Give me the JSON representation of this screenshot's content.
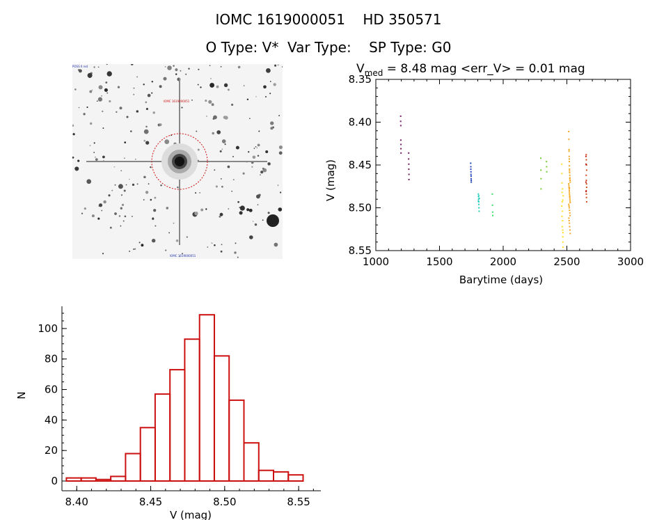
{
  "header": {
    "line1": "IOMC 1619000051    HD 350571",
    "line2": "O Type: V*  Var Type:    SP Type: G0"
  },
  "image_panel": {
    "label_top_left": "POSS II red",
    "label_target": "IOMC 1619000051",
    "label_bottom": "IOMC 1619000051"
  },
  "chart_data": [
    {
      "type": "scatter",
      "title_prefix": "V",
      "title_sub": "med",
      "title_rest": " = 8.48 mag <err_V> = 0.01 mag",
      "xlabel": "Barytime (days)",
      "ylabel": "V (mag)",
      "xlim": [
        1000,
        3000
      ],
      "ylim": [
        8.55,
        8.35
      ],
      "y_inverted": true,
      "xticks": [
        "1000",
        "1500",
        "2000",
        "2500",
        "3000"
      ],
      "yticks": [
        "8.35",
        "8.40",
        "8.45",
        "8.50",
        "8.55"
      ],
      "series": [
        {
          "color": "#7a1a6a",
          "x": [
            1195,
            1195,
            1196,
            1196,
            1197,
            1197,
            1198
          ],
          "y": [
            8.393,
            8.399,
            8.404,
            8.421,
            8.426,
            8.431,
            8.436
          ]
        },
        {
          "color": "#6e1a5e",
          "x": [
            1258,
            1258,
            1259,
            1259,
            1260,
            1260
          ],
          "y": [
            8.436,
            8.443,
            8.449,
            8.455,
            8.461,
            8.467
          ]
        },
        {
          "color": "#2244bb",
          "x": [
            1745,
            1746,
            1746,
            1747,
            1747,
            1748,
            1748,
            1749,
            1749
          ],
          "y": [
            8.448,
            8.452,
            8.455,
            8.458,
            8.461,
            8.463,
            8.466,
            8.468,
            8.47
          ]
        },
        {
          "color": "#22ccbb",
          "x": [
            1805,
            1806,
            1807,
            1808,
            1809,
            1810,
            1811,
            1812,
            1805,
            1808
          ],
          "y": [
            8.484,
            8.487,
            8.49,
            8.493,
            8.496,
            8.5,
            8.504,
            8.489,
            8.492,
            8.486
          ]
        },
        {
          "color": "#33dd66",
          "x": [
            1915,
            1916,
            1917,
            1918
          ],
          "y": [
            8.484,
            8.497,
            8.505,
            8.509
          ]
        },
        {
          "color": "#77cc33",
          "x": [
            2295,
            2296,
            2297,
            2297,
            2340,
            2341,
            2342
          ],
          "y": [
            8.442,
            8.456,
            8.466,
            8.478,
            8.446,
            8.452,
            8.458
          ]
        },
        {
          "color": "#ffdd22",
          "x": [
            2460,
            2461,
            2462,
            2463,
            2464,
            2465,
            2466,
            2467,
            2468,
            2469,
            2470,
            2471,
            2460,
            2462,
            2464,
            2466,
            2468,
            2470
          ],
          "y": [
            8.449,
            8.46,
            8.471,
            8.482,
            8.493,
            8.504,
            8.515,
            8.526,
            8.534,
            8.54,
            8.546,
            8.486,
            8.498,
            8.51,
            8.522,
            8.478,
            8.491,
            8.529
          ]
        },
        {
          "color": "#f5a623",
          "x": [
            2515,
            2516,
            2517,
            2518,
            2519,
            2520,
            2521,
            2522,
            2523,
            2524,
            2525,
            2526,
            2515,
            2516,
            2517,
            2518,
            2519,
            2520,
            2521,
            2522,
            2523,
            2524,
            2525,
            2526,
            2515,
            2517,
            2519,
            2521,
            2523,
            2525,
            2516,
            2518,
            2520,
            2522,
            2524,
            2526,
            2517,
            2519,
            2521,
            2523,
            2520,
            2522
          ],
          "y": [
            8.411,
            8.42,
            8.432,
            8.44,
            8.446,
            8.451,
            8.455,
            8.459,
            8.462,
            8.465,
            8.468,
            8.47,
            8.472,
            8.474,
            8.476,
            8.478,
            8.48,
            8.482,
            8.484,
            8.486,
            8.488,
            8.49,
            8.492,
            8.494,
            8.496,
            8.498,
            8.5,
            8.503,
            8.506,
            8.509,
            8.512,
            8.515,
            8.518,
            8.522,
            8.526,
            8.53,
            8.434,
            8.443,
            8.457,
            8.466,
            8.477,
            8.487
          ]
        },
        {
          "color": "#d14a1a",
          "x": [
            2652,
            2653,
            2654,
            2655,
            2652,
            2653,
            2654,
            2655,
            2652,
            2653,
            2654,
            2655
          ],
          "y": [
            8.438,
            8.444,
            8.45,
            8.456,
            8.462,
            8.468,
            8.472,
            8.476,
            8.48,
            8.484,
            8.488,
            8.493
          ]
        },
        {
          "color": "#b81a1a",
          "x": [
            2650,
            2651,
            2650,
            2651
          ],
          "y": [
            8.44,
            8.449,
            8.47,
            8.481
          ]
        }
      ]
    },
    {
      "type": "bar",
      "xlabel": "V (mag)",
      "ylabel": "N",
      "xlim": [
        8.39,
        8.565
      ],
      "ylim": [
        0,
        110
      ],
      "xticks": [
        "8.40",
        "8.45",
        "8.50",
        "8.55"
      ],
      "yticks": [
        "0",
        "20",
        "40",
        "60",
        "80",
        "100"
      ],
      "bin_edges": [
        8.393,
        8.403,
        8.413,
        8.423,
        8.433,
        8.443,
        8.453,
        8.463,
        8.473,
        8.483,
        8.493,
        8.503,
        8.513,
        8.523,
        8.533,
        8.543,
        8.553
      ],
      "values": [
        2,
        2,
        1,
        3,
        18,
        35,
        57,
        73,
        93,
        109,
        82,
        53,
        25,
        7,
        6,
        4
      ],
      "color": "#cc1111"
    }
  ]
}
